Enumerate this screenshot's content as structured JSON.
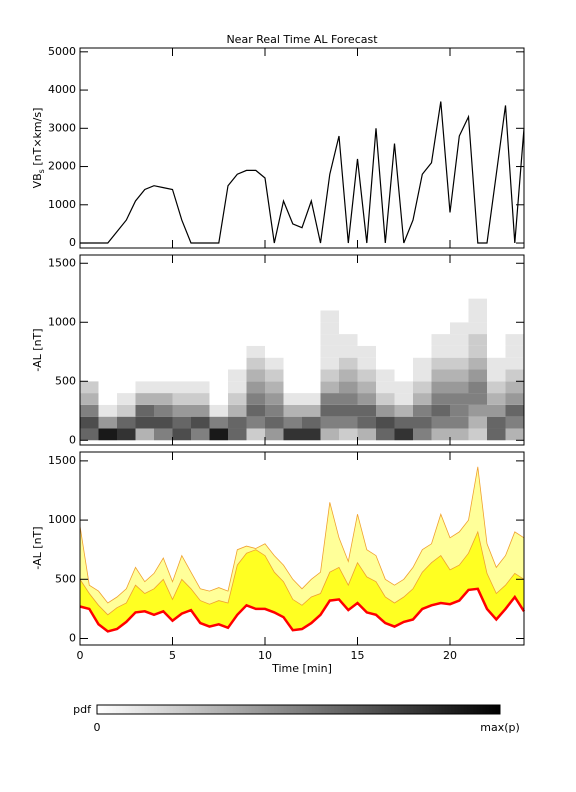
{
  "title": "Near Real Time AL Forecast",
  "chart_data": [
    {
      "type": "line",
      "ylabel": {
        "main": "VB",
        "sub": "s",
        "unit": " [nT×km/s]"
      },
      "ylim": [
        -130,
        5100
      ],
      "yticks": [
        0,
        1000,
        2000,
        3000,
        4000,
        5000
      ],
      "xlim": [
        0,
        24
      ],
      "x": [
        0,
        0.5,
        1,
        1.5,
        2,
        2.5,
        3,
        3.5,
        4,
        4.5,
        5,
        5.5,
        6,
        6.5,
        7,
        7.5,
        8,
        8.5,
        9,
        9.5,
        10,
        10.5,
        11,
        11.5,
        12,
        12.5,
        13,
        13.5,
        14,
        14.5,
        15,
        15.5,
        16,
        16.5,
        17,
        17.5,
        18,
        18.5,
        19,
        19.5,
        20,
        20.5,
        21,
        21.5,
        22,
        22.5,
        23,
        23.5,
        24
      ],
      "series": [
        {
          "color": "#000000",
          "values": [
            0,
            0,
            0,
            0,
            300,
            600,
            1100,
            1400,
            1500,
            1450,
            1400,
            600,
            0,
            0,
            0,
            0,
            1500,
            1800,
            1900,
            1900,
            1700,
            0,
            1100,
            500,
            400,
            1100,
            0,
            1800,
            2800,
            0,
            2200,
            0,
            3000,
            0,
            2600,
            0,
            600,
            1800,
            2100,
            3700,
            800,
            2800,
            3300,
            0,
            0,
            1800,
            3600,
            0,
            3000
          ]
        }
      ]
    },
    {
      "type": "heatmap",
      "ylabel": "-AL [nT]",
      "ylim": [
        -40,
        1570
      ],
      "yticks": [
        0,
        500,
        1000,
        1500
      ],
      "xlim": [
        0,
        24
      ],
      "xbins": [
        0,
        1,
        2,
        3,
        4,
        5,
        6,
        7,
        8,
        9,
        10,
        11,
        12,
        13,
        14,
        15,
        16,
        17,
        18,
        19,
        20,
        21,
        22,
        23,
        24
      ],
      "ybins": [
        0,
        100,
        200,
        300,
        400,
        500,
        600,
        700,
        800,
        900,
        1000,
        1100,
        1200
      ],
      "z": [
        [
          0.6,
          0.7,
          0.5,
          0.3,
          0.2,
          0,
          0,
          0,
          0,
          0,
          0,
          0
        ],
        [
          0.9,
          0.4,
          0.1,
          0,
          0,
          0,
          0,
          0,
          0,
          0,
          0,
          0
        ],
        [
          0.8,
          0.6,
          0.2,
          0.1,
          0,
          0,
          0,
          0,
          0,
          0,
          0,
          0
        ],
        [
          0.3,
          0.7,
          0.6,
          0.3,
          0.1,
          0,
          0,
          0,
          0,
          0,
          0,
          0
        ],
        [
          0.5,
          0.7,
          0.5,
          0.3,
          0.1,
          0,
          0,
          0,
          0,
          0,
          0,
          0
        ],
        [
          0.7,
          0.6,
          0.4,
          0.2,
          0.1,
          0,
          0,
          0,
          0,
          0,
          0,
          0
        ],
        [
          0.5,
          0.7,
          0.4,
          0.2,
          0.1,
          0,
          0,
          0,
          0,
          0,
          0,
          0
        ],
        [
          0.9,
          0.5,
          0.1,
          0,
          0,
          0,
          0,
          0,
          0,
          0,
          0,
          0
        ],
        [
          0.6,
          0.6,
          0.3,
          0.2,
          0.1,
          0.1,
          0,
          0,
          0,
          0,
          0,
          0
        ],
        [
          0.2,
          0.5,
          0.6,
          0.5,
          0.4,
          0.3,
          0.2,
          0.1,
          0,
          0,
          0,
          0
        ],
        [
          0.4,
          0.6,
          0.5,
          0.4,
          0.3,
          0.2,
          0.1,
          0,
          0,
          0,
          0,
          0
        ],
        [
          0.8,
          0.5,
          0.3,
          0.1,
          0,
          0,
          0,
          0,
          0,
          0,
          0,
          0
        ],
        [
          0.8,
          0.6,
          0.3,
          0.1,
          0,
          0,
          0,
          0,
          0,
          0,
          0,
          0
        ],
        [
          0.3,
          0.5,
          0.6,
          0.5,
          0.3,
          0.2,
          0.1,
          0.1,
          0.1,
          0.1,
          0.1,
          0
        ],
        [
          0.2,
          0.5,
          0.6,
          0.5,
          0.4,
          0.3,
          0.2,
          0.1,
          0.1,
          0,
          0,
          0
        ],
        [
          0.3,
          0.6,
          0.6,
          0.4,
          0.3,
          0.2,
          0.1,
          0.1,
          0,
          0,
          0,
          0
        ],
        [
          0.6,
          0.7,
          0.4,
          0.2,
          0.1,
          0.1,
          0,
          0,
          0,
          0,
          0,
          0
        ],
        [
          0.8,
          0.6,
          0.3,
          0.1,
          0.1,
          0,
          0,
          0,
          0,
          0,
          0,
          0
        ],
        [
          0.5,
          0.6,
          0.5,
          0.3,
          0.2,
          0.1,
          0.1,
          0,
          0,
          0,
          0,
          0
        ],
        [
          0.3,
          0.5,
          0.6,
          0.5,
          0.4,
          0.3,
          0.2,
          0.1,
          0.1,
          0,
          0,
          0
        ],
        [
          0.3,
          0.5,
          0.5,
          0.5,
          0.4,
          0.3,
          0.2,
          0.1,
          0.1,
          0.1,
          0,
          0
        ],
        [
          0.2,
          0.3,
          0.4,
          0.5,
          0.5,
          0.4,
          0.3,
          0.2,
          0.2,
          0.1,
          0.1,
          0.1
        ],
        [
          0.6,
          0.6,
          0.4,
          0.3,
          0.2,
          0.1,
          0.1,
          0,
          0,
          0,
          0,
          0
        ],
        [
          0.3,
          0.5,
          0.6,
          0.4,
          0.3,
          0.2,
          0.1,
          0.1,
          0.1,
          0,
          0,
          0
        ]
      ]
    },
    {
      "type": "band",
      "ylabel": "-AL [nT]",
      "xlabel": "Time [min]",
      "ylim": [
        -55,
        1575
      ],
      "yticks": [
        0,
        500,
        1000,
        1500
      ],
      "xlim": [
        0,
        24
      ],
      "xticks": [
        0,
        5,
        10,
        15,
        20
      ],
      "x": [
        0,
        0.5,
        1,
        1.5,
        2,
        2.5,
        3,
        3.5,
        4,
        4.5,
        5,
        5.5,
        6,
        6.5,
        7,
        7.5,
        8,
        8.5,
        9,
        9.5,
        10,
        10.5,
        11,
        11.5,
        12,
        12.5,
        13,
        13.5,
        14,
        14.5,
        15,
        15.5,
        16,
        16.5,
        17,
        17.5,
        18,
        18.5,
        19,
        19.5,
        20,
        20.5,
        21,
        21.5,
        22,
        22.5,
        23,
        23.5,
        24
      ],
      "series": [
        {
          "color": "#f0a030",
          "fill": "#ffff99",
          "values": [
            950,
            450,
            400,
            300,
            350,
            420,
            600,
            480,
            550,
            680,
            480,
            700,
            560,
            420,
            400,
            430,
            400,
            750,
            780,
            760,
            800,
            700,
            620,
            500,
            420,
            500,
            560,
            1150,
            850,
            650,
            1050,
            750,
            700,
            500,
            450,
            500,
            600,
            750,
            800,
            1050,
            850,
            900,
            1000,
            1450,
            800,
            600,
            700,
            900,
            850
          ]
        },
        {
          "color": "#f0a030",
          "fill": "#ffff22",
          "values": [
            500,
            380,
            280,
            200,
            260,
            300,
            450,
            380,
            420,
            500,
            330,
            500,
            420,
            320,
            290,
            320,
            300,
            620,
            720,
            750,
            700,
            560,
            480,
            330,
            280,
            350,
            380,
            560,
            600,
            450,
            640,
            520,
            480,
            350,
            300,
            350,
            420,
            560,
            640,
            700,
            580,
            620,
            720,
            900,
            550,
            380,
            450,
            550,
            500
          ]
        },
        {
          "color": "#ff0000",
          "values": [
            270,
            250,
            120,
            60,
            80,
            140,
            220,
            230,
            200,
            230,
            150,
            210,
            240,
            130,
            100,
            120,
            90,
            200,
            280,
            250,
            250,
            220,
            180,
            70,
            80,
            130,
            200,
            320,
            330,
            240,
            300,
            220,
            200,
            130,
            100,
            140,
            160,
            250,
            280,
            300,
            290,
            320,
            410,
            420,
            250,
            160,
            250,
            350,
            230
          ]
        }
      ]
    }
  ],
  "colorbar": {
    "label": "pdf",
    "min_label": "0",
    "max_label": "max(p)"
  }
}
